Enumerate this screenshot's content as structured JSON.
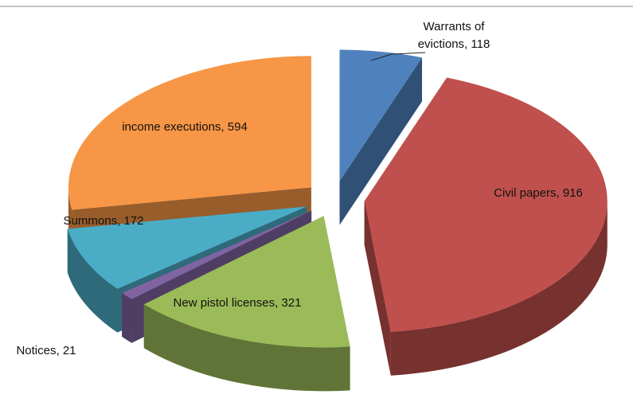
{
  "chart_data": {
    "type": "pie",
    "values": [
      118,
      916,
      321,
      21,
      172,
      594
    ],
    "value_labels": [
      "Warrants of evictions, 118",
      "Civil papers, 916",
      "New pistol licenses, 321",
      "Notices, 21",
      "Summons, 172",
      "income executions, 594"
    ],
    "colors": [
      "#4f81bd",
      "#c0504d",
      "#9bbb59",
      "#8064a2",
      "#4bacc6",
      "#f79646"
    ]
  }
}
